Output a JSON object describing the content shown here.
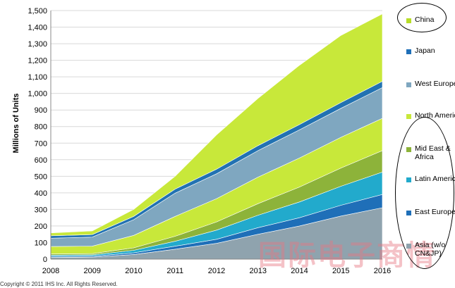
{
  "chart_data": {
    "type": "area",
    "stacked": true,
    "x": [
      "2008",
      "2009",
      "2010",
      "2011",
      "2012",
      "2013",
      "2014",
      "2015",
      "2016"
    ],
    "ylabel": "Millions of Units",
    "ylim": [
      0,
      1500
    ],
    "yticks": [
      "0",
      "100",
      "200",
      "300",
      "400",
      "500",
      "600",
      "700",
      "800",
      "900",
      "1,000",
      "1,100",
      "1,200",
      "1,300",
      "1,400",
      "1,500"
    ],
    "grid": true,
    "legend_position": "right",
    "series": [
      {
        "name": "Asia (w/o CN&JP)",
        "color": "#8fa3ae",
        "values": [
          10,
          12,
          28,
          60,
          95,
          150,
          200,
          260,
          310
        ]
      },
      {
        "name": "East Europe",
        "color": "#1f6fb8",
        "values": [
          6,
          6,
          10,
          18,
          25,
          40,
          50,
          65,
          80
        ]
      },
      {
        "name": "Latin America",
        "color": "#22aacc",
        "values": [
          8,
          8,
          15,
          30,
          55,
          75,
          95,
          115,
          135
        ]
      },
      {
        "name": "Mid East & Africa",
        "color": "#8db33a",
        "values": [
          7,
          7,
          15,
          30,
          50,
          70,
          90,
          110,
          130
        ]
      },
      {
        "name": "North America",
        "color": "#c8e83a",
        "values": [
          45,
          45,
          75,
          120,
          140,
          160,
          175,
          185,
          195
        ]
      },
      {
        "name": "West Europe",
        "color": "#7fa7c0",
        "values": [
          50,
          55,
          95,
          140,
          150,
          160,
          170,
          175,
          185
        ]
      },
      {
        "name": "Japan",
        "color": "#2272b2",
        "values": [
          15,
          15,
          20,
          25,
          28,
          30,
          32,
          35,
          38
        ]
      },
      {
        "name": "China",
        "color": "#c8e83a",
        "values": [
          17,
          22,
          42,
          77,
          207,
          285,
          358,
          405,
          407
        ]
      }
    ]
  },
  "legend": [
    {
      "label": "China",
      "color": "#b7dd28"
    },
    {
      "label": "Japan",
      "color": "#1f6fb8"
    },
    {
      "label": "West Europe",
      "color": "#7fa7c0"
    },
    {
      "label": "North America",
      "color": "#c8e83a"
    },
    {
      "label": "Mid East & Africa",
      "color": "#8db33a"
    },
    {
      "label": "Latin America",
      "color": "#22aacc"
    },
    {
      "label": "East Europe",
      "color": "#1f6fb8"
    },
    {
      "label": "Asia (w/o CN&JP)",
      "color": "#8fa3ae"
    }
  ],
  "copyright": "Copyright © 2011 IHS Inc. All Rights Reserved.",
  "watermark": "国际电子商情"
}
